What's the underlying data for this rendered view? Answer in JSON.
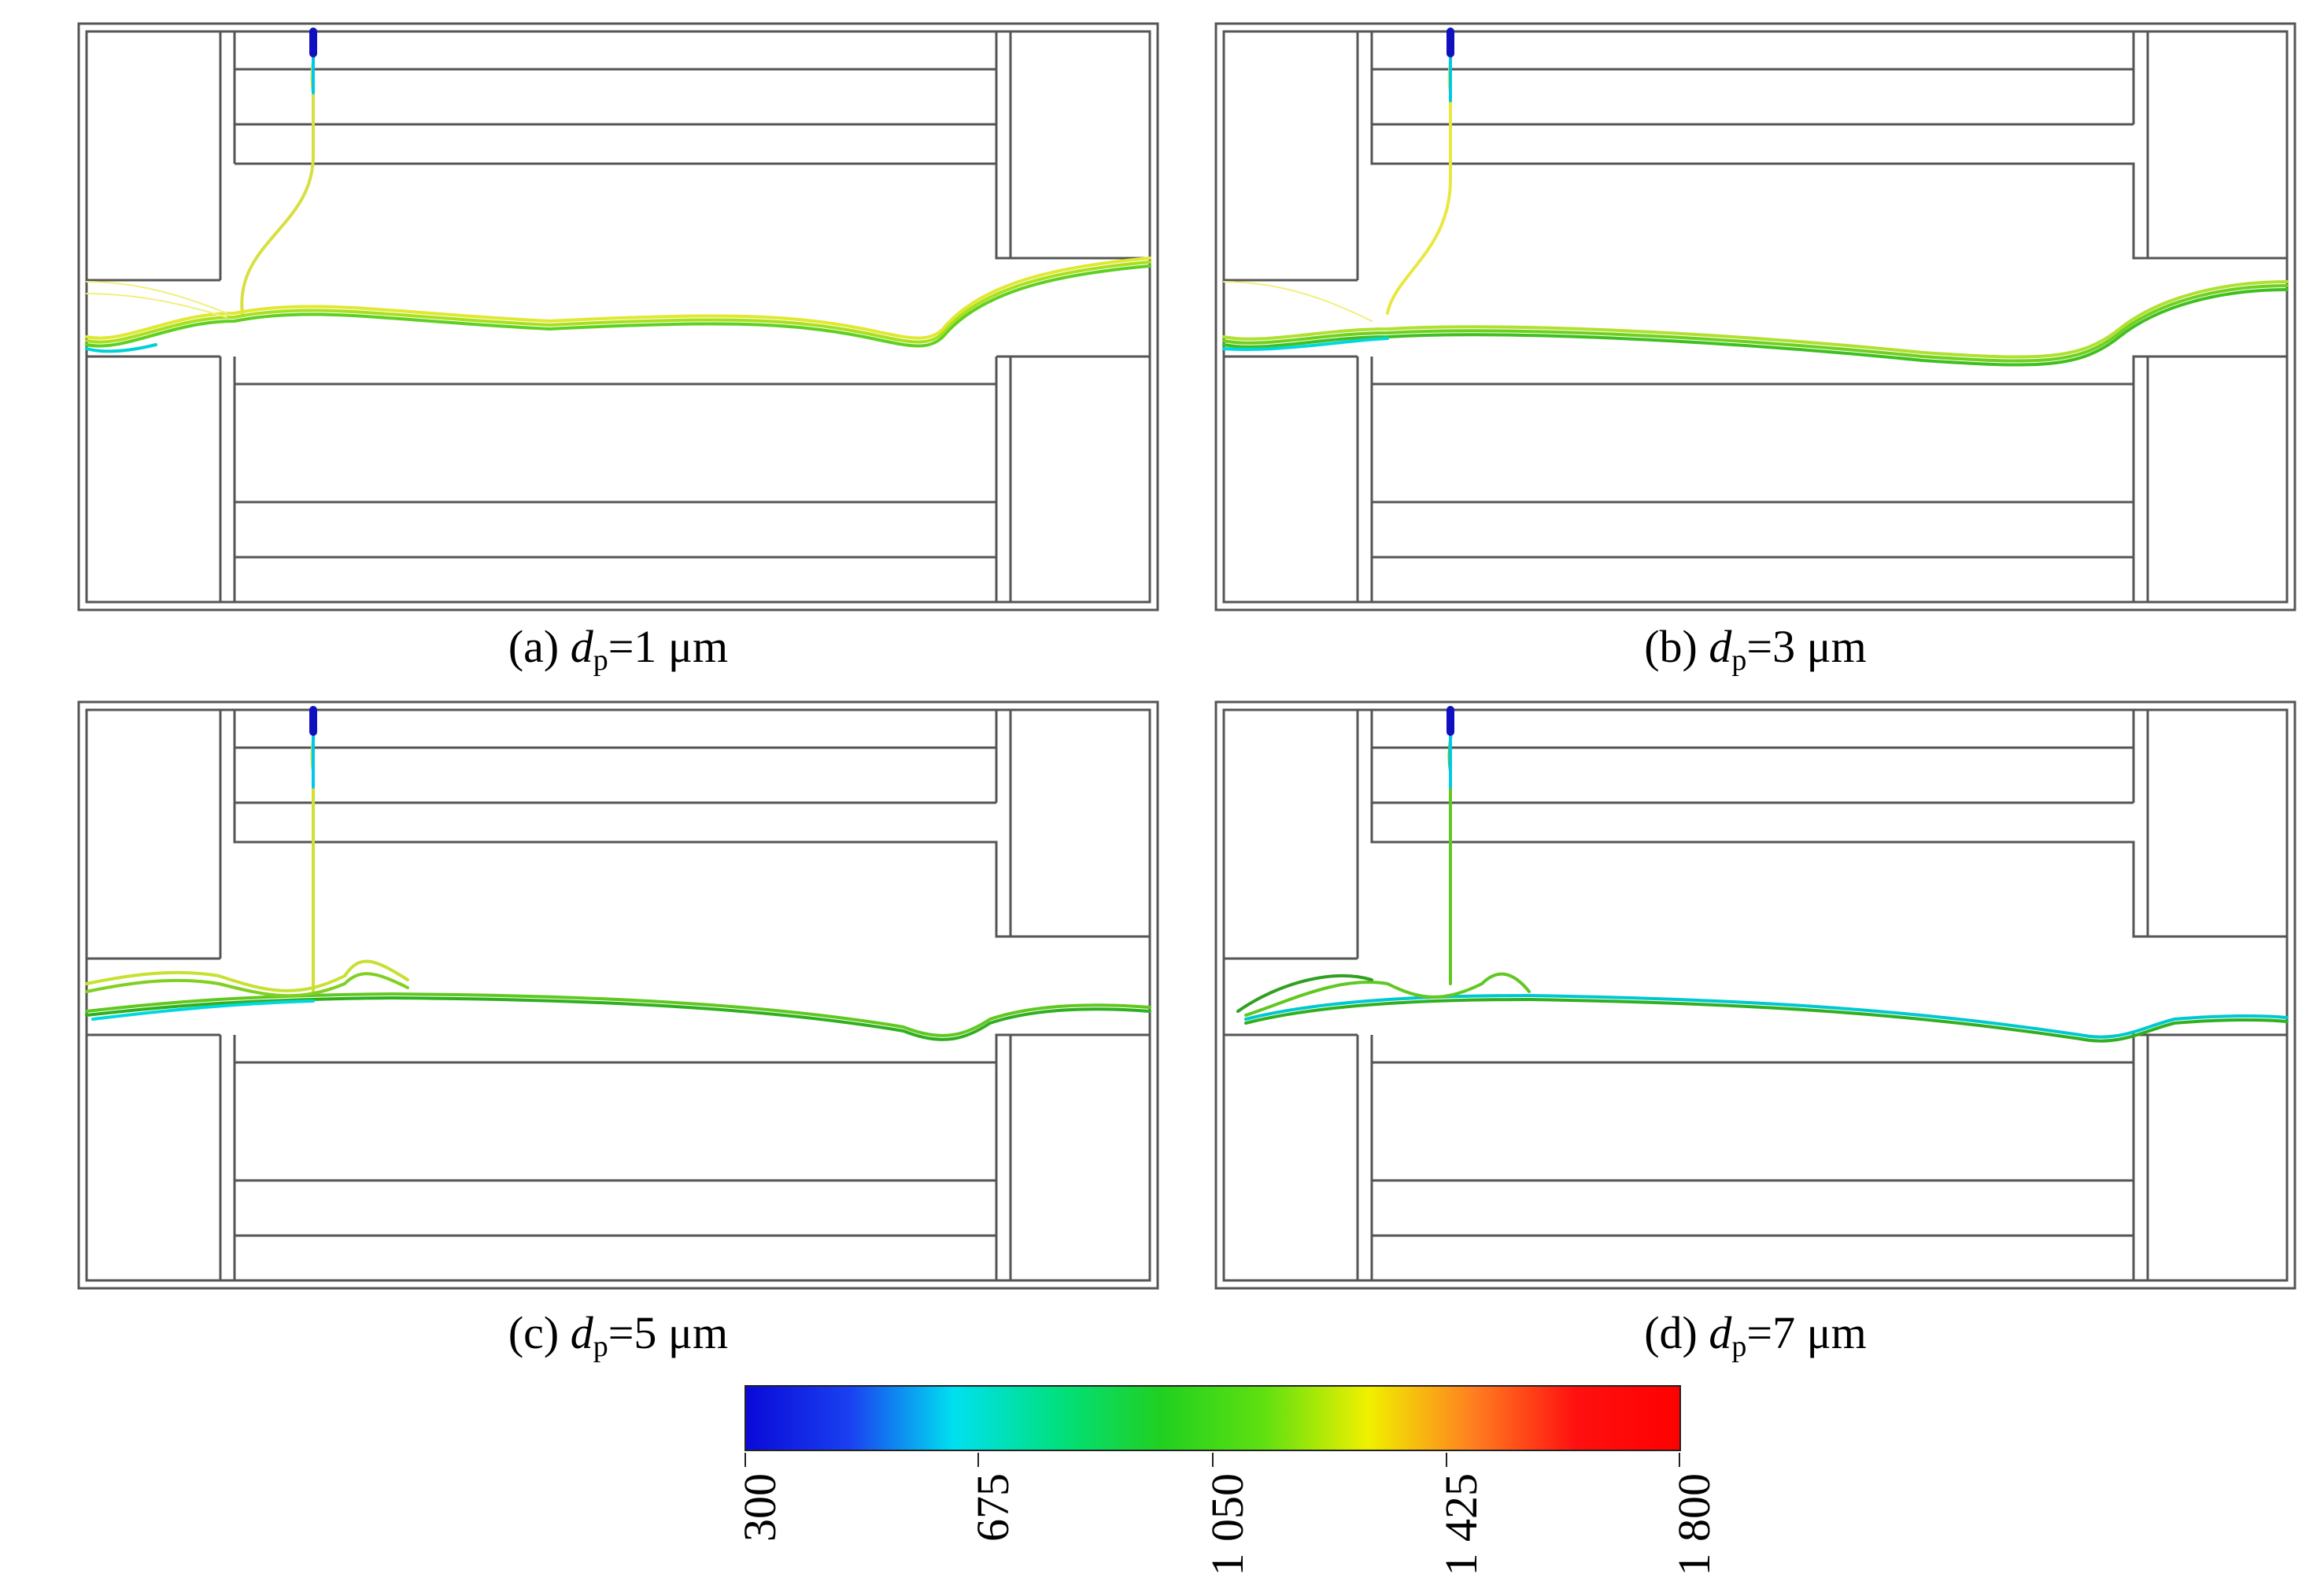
{
  "panels": [
    {
      "label": "(a) ",
      "var": "d",
      "sub": "p",
      "value": "=1 μm"
    },
    {
      "label": "(b) ",
      "var": "d",
      "sub": "p",
      "value": "=3 μm"
    },
    {
      "label": "(c) ",
      "var": "d",
      "sub": "p",
      "value": "=5 μm"
    },
    {
      "label": "(d) ",
      "var": "d",
      "sub": "p",
      "value": "=7 μm"
    }
  ],
  "colorbar": {
    "min": 300,
    "max": 1800,
    "tick_labels": [
      "300",
      "675",
      "1 050",
      "1 425",
      "1 800"
    ],
    "colors": [
      "#0a0ad8",
      "#1a40f0",
      "#00e0f0",
      "#00e080",
      "#20d020",
      "#60e010",
      "#f0f000",
      "#ff8020",
      "#ff1010",
      "#ff0000"
    ]
  }
}
